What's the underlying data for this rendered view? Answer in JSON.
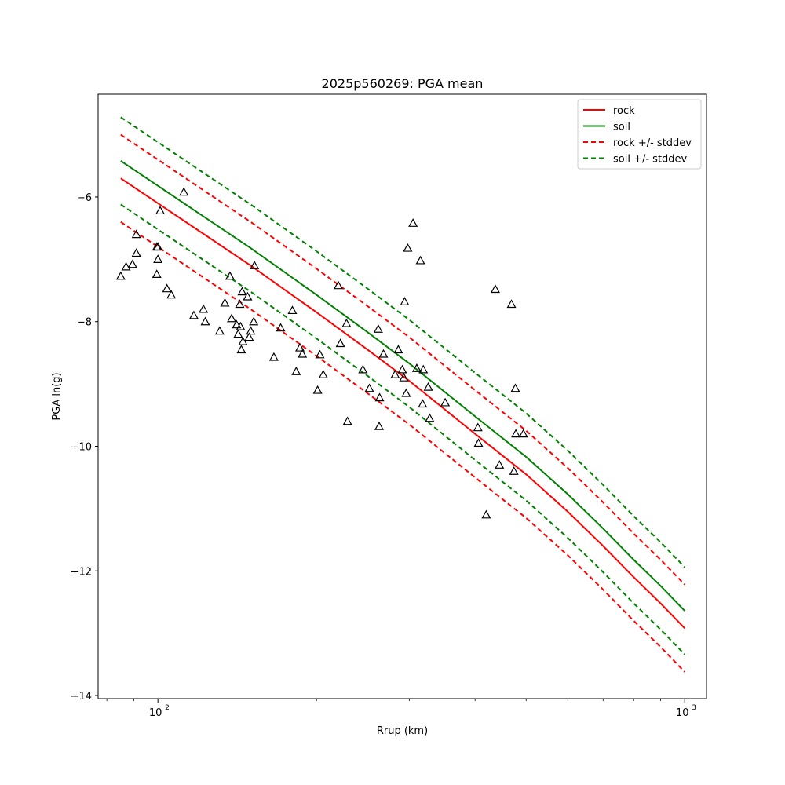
{
  "chart_data": {
    "type": "scatter",
    "title": "2025p560269: PGA mean",
    "xlabel": "Rrup (km)",
    "ylabel": "PGA ln(g)",
    "xscale": "log",
    "xlim": [
      77,
      1100
    ],
    "ylim": [
      -14.05,
      -4.35
    ],
    "yticks": [
      -6,
      -8,
      -10,
      -12,
      -14
    ],
    "yticklabels": [
      "−6",
      "−8",
      "−10",
      "−12",
      "−14"
    ],
    "xticks_major": [
      100,
      1000
    ],
    "xticklabels": [
      "10",
      "10"
    ],
    "xtick_exponents": [
      "2",
      "3"
    ],
    "xticks_minor": [
      80,
      90,
      200,
      300,
      400,
      500,
      600,
      700,
      800,
      900
    ],
    "grid": false,
    "legend_position": "top-right",
    "series": [
      {
        "name": "rock",
        "style": "solid",
        "color": "#ff0000",
        "x": [
          85,
          100,
          120,
          150,
          200,
          250,
          300,
          400,
          500,
          600,
          700,
          800,
          900,
          1000
        ],
        "y": [
          -5.7,
          -6.1,
          -6.55,
          -7.1,
          -7.85,
          -8.45,
          -8.95,
          -9.8,
          -10.45,
          -11.05,
          -11.6,
          -12.1,
          -12.52,
          -12.92
        ]
      },
      {
        "name": "soil",
        "style": "solid",
        "color": "#008000",
        "x": [
          85,
          100,
          120,
          150,
          200,
          250,
          300,
          400,
          500,
          600,
          700,
          800,
          900,
          1000
        ],
        "y": [
          -5.42,
          -5.82,
          -6.27,
          -6.82,
          -7.57,
          -8.17,
          -8.67,
          -9.52,
          -10.17,
          -10.77,
          -11.32,
          -11.82,
          -12.24,
          -12.64
        ]
      },
      {
        "name": "rock +/- stddev",
        "style": "dashed",
        "color": "#ff0000",
        "upper": [
          -5.0,
          -5.4,
          -5.85,
          -6.4,
          -7.15,
          -7.75,
          -8.25,
          -9.1,
          -9.75,
          -10.35,
          -10.9,
          -11.4,
          -11.82,
          -12.22
        ],
        "lower": [
          -6.4,
          -6.8,
          -7.25,
          -7.8,
          -8.55,
          -9.15,
          -9.65,
          -10.5,
          -11.15,
          -11.75,
          -12.3,
          -12.8,
          -13.22,
          -13.62
        ]
      },
      {
        "name": "soil +/- stddev",
        "style": "dashed",
        "color": "#008000",
        "upper": [
          -4.72,
          -5.12,
          -5.57,
          -6.12,
          -6.87,
          -7.47,
          -7.97,
          -8.82,
          -9.47,
          -10.07,
          -10.62,
          -11.12,
          -11.54,
          -11.94
        ],
        "lower": [
          -6.12,
          -6.52,
          -6.97,
          -7.52,
          -8.27,
          -8.87,
          -9.37,
          -10.22,
          -10.87,
          -11.47,
          -12.02,
          -12.52,
          -12.94,
          -13.34
        ]
      }
    ],
    "observations": {
      "marker": "triangle",
      "points": [
        [
          85,
          -7.27
        ],
        [
          87,
          -7.12
        ],
        [
          89.5,
          -7.08
        ],
        [
          91,
          -6.6
        ],
        [
          91,
          -6.9
        ],
        [
          99.5,
          -6.8
        ],
        [
          100,
          -6.8
        ],
        [
          100,
          -7.0
        ],
        [
          99.5,
          -7.24
        ],
        [
          101,
          -6.22
        ],
        [
          104,
          -7.47
        ],
        [
          106,
          -7.57
        ],
        [
          112,
          -5.92
        ],
        [
          117,
          -7.9
        ],
        [
          122,
          -7.8
        ],
        [
          123,
          -8.0
        ],
        [
          131,
          -8.15
        ],
        [
          134,
          -7.7
        ],
        [
          137,
          -7.27
        ],
        [
          138,
          -7.95
        ],
        [
          141,
          -8.05
        ],
        [
          142,
          -8.2
        ],
        [
          143,
          -7.72
        ],
        [
          143.5,
          -8.08
        ],
        [
          144,
          -8.45
        ],
        [
          144.5,
          -7.52
        ],
        [
          145,
          -8.32
        ],
        [
          148,
          -7.6
        ],
        [
          149,
          -8.25
        ],
        [
          150,
          -8.15
        ],
        [
          152,
          -8.0
        ],
        [
          152.5,
          -7.1
        ],
        [
          166,
          -8.57
        ],
        [
          171,
          -8.1
        ],
        [
          180,
          -7.82
        ],
        [
          183,
          -8.8
        ],
        [
          186,
          -8.42
        ],
        [
          188,
          -8.52
        ],
        [
          201,
          -9.1
        ],
        [
          203,
          -8.53
        ],
        [
          206,
          -8.85
        ],
        [
          220,
          -7.42
        ],
        [
          222,
          -8.35
        ],
        [
          228,
          -8.03
        ],
        [
          229,
          -9.6
        ],
        [
          245,
          -8.77
        ],
        [
          252,
          -9.07
        ],
        [
          262,
          -8.12
        ],
        [
          263,
          -9.68
        ],
        [
          263.5,
          -9.22
        ],
        [
          268,
          -8.52
        ],
        [
          282,
          -8.85
        ],
        [
          286,
          -8.45
        ],
        [
          291,
          -8.77
        ],
        [
          293,
          -8.9
        ],
        [
          294,
          -7.68
        ],
        [
          296,
          -9.15
        ],
        [
          298,
          -6.82
        ],
        [
          305,
          -6.42
        ],
        [
          310,
          -8.75
        ],
        [
          315,
          -7.02
        ],
        [
          318,
          -9.32
        ],
        [
          319,
          -8.77
        ],
        [
          326,
          -9.05
        ],
        [
          328,
          -9.55
        ],
        [
          351,
          -9.3
        ],
        [
          405,
          -9.7
        ],
        [
          406,
          -9.95
        ],
        [
          420,
          -11.1
        ],
        [
          437,
          -7.48
        ],
        [
          445,
          -10.3
        ],
        [
          469,
          -7.72
        ],
        [
          474,
          -10.4
        ],
        [
          477,
          -9.07
        ],
        [
          478,
          -9.8
        ],
        [
          494,
          -9.8
        ]
      ]
    }
  }
}
